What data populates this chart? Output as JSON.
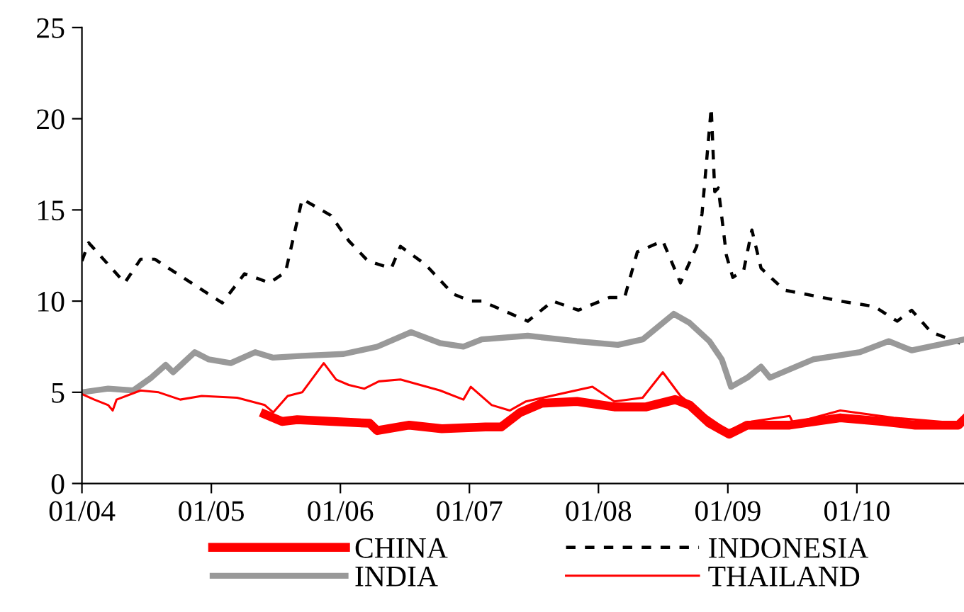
{
  "chart_data": {
    "type": "line",
    "xlim": [
      "2004-01-01",
      "2010-10-31"
    ],
    "xticks": [
      {
        "value": "2004-01-01",
        "label": "01/04"
      },
      {
        "value": "2005-01-01",
        "label": "01/05"
      },
      {
        "value": "2006-01-01",
        "label": "01/06"
      },
      {
        "value": "2007-01-01",
        "label": "01/07"
      },
      {
        "value": "2008-01-01",
        "label": "01/08"
      },
      {
        "value": "2009-01-01",
        "label": "01/09"
      },
      {
        "value": "2010-01-01",
        "label": "01/10"
      }
    ],
    "ylim": [
      0,
      25
    ],
    "yticks": [
      0,
      5,
      10,
      15,
      20,
      25
    ],
    "grid": false,
    "legend": "bottom",
    "series": [
      {
        "name": "CHINA",
        "color": "#ff0000",
        "line_style": "solid",
        "x": [
          "2005-06-01",
          "2005-07-20",
          "2005-09-01",
          "2006-03-25",
          "2006-04-15",
          "2006-07-15",
          "2006-10-15",
          "2007-02-15",
          "2007-04-01",
          "2007-05-25",
          "2007-07-25",
          "2007-11-01",
          "2008-02-15",
          "2008-05-15",
          "2008-08-05",
          "2008-09-15",
          "2008-11-10",
          "2009-01-05",
          "2009-02-25",
          "2009-06-25",
          "2009-11-15",
          "2010-03-15",
          "2010-06-15",
          "2010-10-15",
          "2010-10-31"
        ],
        "values": [
          3.8,
          3.4,
          3.5,
          3.3,
          2.9,
          3.2,
          3.0,
          3.1,
          3.1,
          3.9,
          4.4,
          4.5,
          4.2,
          4.2,
          4.6,
          4.3,
          3.3,
          2.7,
          3.2,
          3.2,
          3.6,
          3.4,
          3.2,
          3.2,
          3.5
        ]
      },
      {
        "name": "INDONESIA",
        "color": "#000000",
        "line_style": "dashed",
        "x": [
          "2004-01-01",
          "2004-01-20",
          "2004-05-01",
          "2004-06-15",
          "2004-07-25",
          "2005-02-01",
          "2005-04-05",
          "2005-06-15",
          "2005-07-30",
          "2005-09-15",
          "2005-12-05",
          "2006-01-25",
          "2006-03-20",
          "2006-05-25",
          "2006-06-20",
          "2006-08-30",
          "2006-11-15",
          "2007-01-05",
          "2007-02-05",
          "2007-06-15",
          "2007-08-25",
          "2007-11-05",
          "2008-02-01",
          "2008-03-15",
          "2008-04-20",
          "2008-07-01",
          "2008-08-20",
          "2008-10-05",
          "2008-10-20",
          "2008-11-15",
          "2008-11-25",
          "2008-12-05",
          "2008-12-28",
          "2009-01-15",
          "2009-02-15",
          "2009-03-10",
          "2009-04-05",
          "2009-06-10",
          "2009-08-30",
          "2009-11-15",
          "2010-02-20",
          "2010-04-25",
          "2010-06-05",
          "2010-07-30",
          "2010-10-20"
        ],
        "values": [
          12.2,
          13.2,
          11.0,
          12.3,
          12.3,
          9.9,
          11.5,
          11.0,
          11.6,
          15.6,
          14.7,
          13.3,
          12.2,
          11.8,
          13.0,
          12.0,
          10.4,
          10.0,
          10.0,
          8.9,
          10.0,
          9.5,
          10.2,
          10.2,
          12.7,
          13.3,
          11.0,
          13.0,
          14.8,
          20.6,
          16.0,
          16.2,
          12.5,
          11.3,
          11.7,
          13.9,
          11.8,
          10.6,
          10.3,
          10.0,
          9.7,
          8.9,
          9.5,
          8.3,
          7.7
        ]
      },
      {
        "name": "INDIA",
        "color": "#999999",
        "line_style": "solid",
        "x": [
          "2004-01-01",
          "2004-03-15",
          "2004-05-25",
          "2004-07-15",
          "2004-08-25",
          "2004-09-15",
          "2004-11-15",
          "2004-12-25",
          "2005-02-25",
          "2005-05-05",
          "2005-06-25",
          "2005-09-15",
          "2006-01-10",
          "2006-04-15",
          "2006-07-20",
          "2006-10-10",
          "2006-12-15",
          "2007-02-05",
          "2007-06-15",
          "2007-11-01",
          "2008-02-25",
          "2008-05-05",
          "2008-08-01",
          "2008-09-15",
          "2008-11-10",
          "2008-12-15",
          "2009-01-10",
          "2009-02-25",
          "2009-04-05",
          "2009-04-30",
          "2009-08-30",
          "2010-01-10",
          "2010-04-01",
          "2010-06-05",
          "2010-10-31"
        ],
        "values": [
          5.0,
          5.2,
          5.1,
          5.8,
          6.5,
          6.1,
          7.2,
          6.8,
          6.6,
          7.2,
          6.9,
          7.0,
          7.1,
          7.5,
          8.3,
          7.7,
          7.5,
          7.9,
          8.1,
          7.8,
          7.6,
          7.9,
          9.3,
          8.8,
          7.8,
          6.8,
          5.3,
          5.8,
          6.4,
          5.8,
          6.8,
          7.2,
          7.8,
          7.3,
          7.9
        ]
      },
      {
        "name": "THAILAND",
        "color": "#ff0000",
        "line_style": "solid",
        "x": [
          "2004-01-01",
          "2004-02-05",
          "2004-03-15",
          "2004-03-28",
          "2004-04-08",
          "2004-06-15",
          "2004-08-05",
          "2004-10-05",
          "2004-12-05",
          "2005-03-15",
          "2005-06-01",
          "2005-06-25",
          "2005-08-05",
          "2005-09-15",
          "2005-11-15",
          "2005-12-20",
          "2006-01-25",
          "2006-03-10",
          "2006-04-20",
          "2006-06-20",
          "2006-10-10",
          "2006-12-15",
          "2007-01-05",
          "2007-03-05",
          "2007-04-25",
          "2007-06-10",
          "2007-12-15",
          "2008-02-15",
          "2008-05-05",
          "2008-07-01",
          "2008-08-20",
          "2008-10-25",
          "2009-01-01",
          "2009-03-10",
          "2009-06-25",
          "2009-07-05",
          "2009-11-15",
          "2010-04-15",
          "2010-10-20"
        ],
        "values": [
          4.9,
          4.6,
          4.3,
          4.0,
          4.6,
          5.1,
          5.0,
          4.6,
          4.8,
          4.7,
          4.3,
          3.9,
          4.8,
          5.0,
          6.6,
          5.7,
          5.4,
          5.2,
          5.6,
          5.7,
          5.1,
          4.6,
          5.3,
          4.3,
          4.0,
          4.5,
          5.3,
          4.5,
          4.7,
          6.1,
          4.8,
          3.8,
          2.9,
          3.4,
          3.7,
          3.3,
          4.0,
          3.6,
          3.3
        ]
      }
    ]
  }
}
